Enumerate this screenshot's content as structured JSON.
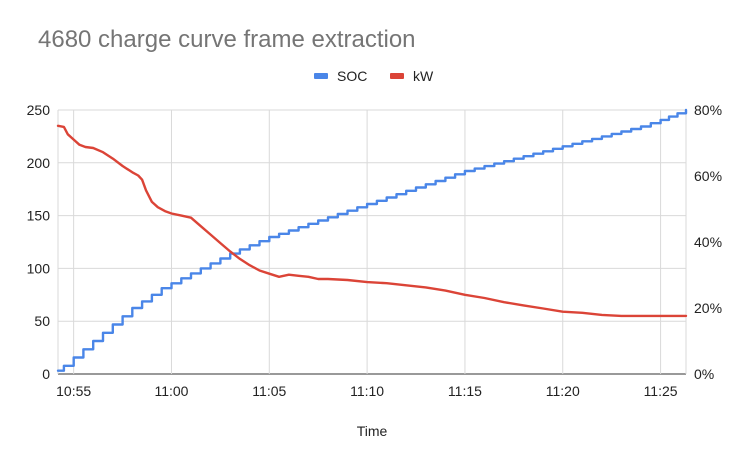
{
  "chart_data": {
    "type": "line",
    "title": "4680 charge curve frame extraction",
    "xlabel": "Time",
    "ylabel": "",
    "ylabel_right": "",
    "legend_position": "top",
    "grid": true,
    "x_ticks": [
      "10:55",
      "11:00",
      "11:05",
      "11:10",
      "11:15",
      "11:20",
      "11:25"
    ],
    "x_tick_minutes": [
      0,
      5,
      10,
      15,
      20,
      25,
      30
    ],
    "xlim": [
      -0.8,
      31.3
    ],
    "ylim": [
      0,
      250
    ],
    "y_ticks": [
      "0",
      "50",
      "100",
      "150",
      "200",
      "250"
    ],
    "ylim_right": [
      0,
      80
    ],
    "y_ticks_right": [
      "0%",
      "20%",
      "40%",
      "60%",
      "80%"
    ],
    "x_note": "x values are minutes after 10:55",
    "series": [
      {
        "name": "SOC",
        "axis": "right",
        "color": "#4a86e8",
        "step": true,
        "x": [
          -0.8,
          -0.5,
          0,
          0.5,
          1,
          1.5,
          2,
          2.5,
          3,
          3.5,
          4,
          4.5,
          5,
          6,
          7,
          8,
          9,
          10,
          11,
          12,
          13,
          14,
          15,
          16,
          17,
          18,
          19,
          20,
          21,
          22,
          23,
          24,
          25,
          26,
          27,
          28,
          29,
          30,
          31.3
        ],
        "y": [
          1,
          2.5,
          5,
          7.5,
          10,
          12.5,
          15,
          17.5,
          20,
          22,
          24,
          26,
          27.5,
          30.5,
          33.5,
          36.5,
          39,
          41.5,
          43.5,
          45.5,
          47.5,
          49.5,
          51.5,
          53.5,
          55.5,
          57.5,
          59.5,
          61.5,
          63,
          64.5,
          66,
          67.5,
          69,
          70.5,
          72,
          73.5,
          75,
          77,
          80
        ]
      },
      {
        "name": "kW",
        "axis": "left",
        "color": "#db4437",
        "step": false,
        "x": [
          -0.8,
          -0.5,
          -0.3,
          0,
          0.3,
          0.6,
          1,
          1.5,
          2,
          2.5,
          3,
          3.3,
          3.5,
          3.7,
          4,
          4.3,
          4.7,
          5,
          5.5,
          6,
          6.5,
          7,
          7.5,
          8,
          8.5,
          9,
          9.5,
          10,
          10.5,
          11,
          11.5,
          12,
          12.5,
          13,
          14,
          15,
          16,
          17,
          18,
          19,
          20,
          21,
          22,
          23,
          24,
          25,
          26,
          27,
          28,
          29,
          30,
          31.3
        ],
        "y": [
          235,
          234,
          227,
          222,
          217,
          215,
          214,
          210,
          204,
          197,
          191,
          188,
          184,
          174,
          163,
          158,
          154,
          152,
          150,
          148,
          140,
          132,
          124,
          116,
          109,
          103,
          98,
          95,
          92,
          94,
          93,
          92,
          90,
          90,
          89,
          87,
          86,
          84,
          82,
          79,
          75,
          72,
          68,
          65,
          62,
          59,
          58,
          56,
          55,
          55,
          55,
          55
        ]
      }
    ]
  }
}
